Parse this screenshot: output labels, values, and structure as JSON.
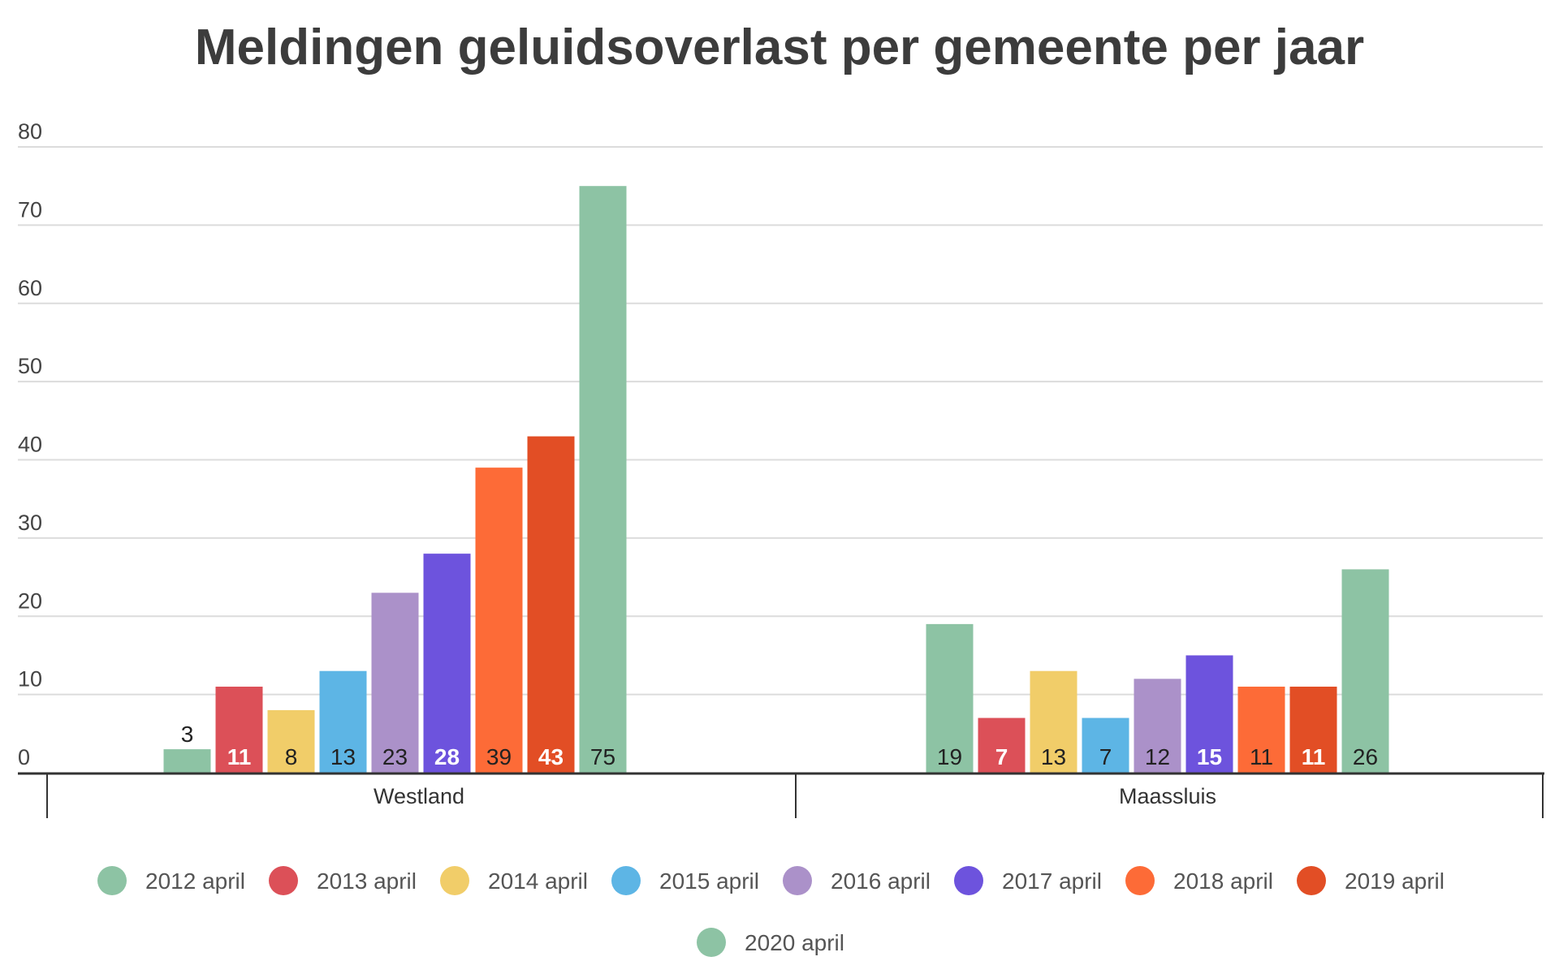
{
  "chart_data": {
    "type": "bar",
    "title": "Meldingen geluidsoverlast per gemeente per jaar",
    "xlabel": "",
    "ylabel": "",
    "ylim": [
      0,
      80
    ],
    "yticks": [
      "0",
      "10",
      "20",
      "30",
      "40",
      "50",
      "60",
      "70",
      "80"
    ],
    "grid": true,
    "legend_position": "bottom",
    "categories": [
      "Westland",
      "Maassluis"
    ],
    "series": [
      {
        "name": "2012 april",
        "color": "#8dc3a4",
        "label_color": "#222222",
        "label_bold": false,
        "values": [
          3,
          19
        ]
      },
      {
        "name": "2013 april",
        "color": "#dc5058",
        "label_color": "#ffffff",
        "label_bold": true,
        "values": [
          11,
          7
        ]
      },
      {
        "name": "2014 april",
        "color": "#f1cd69",
        "label_color": "#222222",
        "label_bold": false,
        "values": [
          8,
          13
        ]
      },
      {
        "name": "2015 april",
        "color": "#5db5e5",
        "label_color": "#222222",
        "label_bold": false,
        "values": [
          13,
          7
        ]
      },
      {
        "name": "2016 april",
        "color": "#ab91c9",
        "label_color": "#222222",
        "label_bold": false,
        "values": [
          23,
          12
        ]
      },
      {
        "name": "2017 april",
        "color": "#6d53dd",
        "label_color": "#ffffff",
        "label_bold": true,
        "values": [
          28,
          15
        ]
      },
      {
        "name": "2018 april",
        "color": "#fd6b37",
        "label_color": "#222222",
        "label_bold": false,
        "values": [
          39,
          11
        ]
      },
      {
        "name": "2019 april",
        "color": "#e24e25",
        "label_color": "#ffffff",
        "label_bold": true,
        "values": [
          43,
          11
        ]
      },
      {
        "name": "2020 april",
        "color": "#8dc3a4",
        "label_color": "#222222",
        "label_bold": false,
        "values": [
          75,
          26
        ]
      }
    ]
  }
}
